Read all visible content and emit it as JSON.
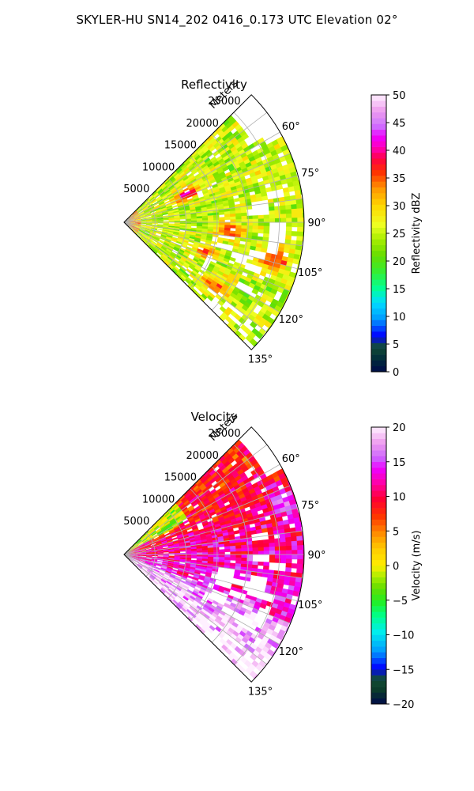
{
  "figure": {
    "title": "SKYLER-HU  SN14_202  0416_0.173 UTC Elevation 02°"
  },
  "chart_data": [
    {
      "type": "heatmap",
      "projection": "polar-sector",
      "title": "Reflectivity",
      "range_axis_label": "Meters",
      "range_ticks": [
        5000,
        10000,
        15000,
        20000,
        25000
      ],
      "range_tick_labels": [
        "5000",
        "10000",
        "15000",
        "20000",
        "25000"
      ],
      "range_max": 29000,
      "azimuth_range_deg": [
        45,
        135
      ],
      "azimuth_ticks": [
        60,
        75,
        90,
        105,
        120,
        135
      ],
      "azimuth_tick_labels": [
        "60°",
        "75°",
        "90°",
        "105°",
        "120°",
        "135°"
      ],
      "grid": true,
      "colorbar": {
        "label": "Reflectivity dBZ",
        "min": 0,
        "max": 50,
        "ticks": [
          0,
          5,
          10,
          15,
          20,
          25,
          30,
          35,
          40,
          45,
          50
        ],
        "tick_labels": [
          "0",
          "5",
          "10",
          "15",
          "20",
          "25",
          "30",
          "35",
          "40",
          "45",
          "50"
        ]
      },
      "field_summary": {
        "dominant_range": [
          18,
          30
        ],
        "features": [
          {
            "azimuth_deg": 66,
            "range_m": 11000,
            "value": 42
          },
          {
            "azimuth_deg": 95,
            "range_m": 17000,
            "value": 37
          },
          {
            "azimuth_deg": 110,
            "range_m": 14000,
            "value": 35
          },
          {
            "azimuth_deg": 104,
            "range_m": 25000,
            "value": 38
          },
          {
            "azimuth_deg": 125,
            "range_m": 18000,
            "value": 36
          }
        ]
      }
    },
    {
      "type": "heatmap",
      "projection": "polar-sector",
      "title": "Velocity",
      "range_axis_label": "Meters",
      "range_ticks": [
        5000,
        10000,
        15000,
        20000,
        25000
      ],
      "range_tick_labels": [
        "5000",
        "10000",
        "15000",
        "20000",
        "25000"
      ],
      "range_max": 29000,
      "azimuth_range_deg": [
        45,
        135
      ],
      "azimuth_ticks": [
        60,
        75,
        90,
        105,
        120,
        135
      ],
      "azimuth_tick_labels": [
        "60°",
        "75°",
        "90°",
        "105°",
        "120°",
        "135°"
      ],
      "grid": true,
      "colorbar": {
        "label": "Velocity (m/s)",
        "min": -20,
        "max": 20,
        "ticks": [
          -20,
          -15,
          -10,
          -5,
          0,
          5,
          10,
          15,
          20
        ],
        "tick_labels": [
          "−20",
          "−15",
          "−10",
          "−5",
          "0",
          "5",
          "10",
          "15",
          "20"
        ]
      },
      "field_summary": {
        "dominant_range": [
          3,
          15
        ],
        "features": [
          {
            "azimuth_deg": 60,
            "range_m": 8000,
            "value": -3
          },
          {
            "azimuth_deg": 100,
            "range_m": 12000,
            "value": 13
          },
          {
            "azimuth_deg": 120,
            "range_m": 15000,
            "value": 16
          },
          {
            "azimuth_deg": 72,
            "range_m": 27000,
            "value": 16
          }
        ]
      }
    }
  ]
}
